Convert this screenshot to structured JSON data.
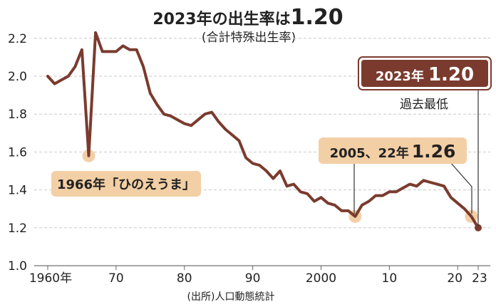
{
  "title": {
    "prefix": "2023年の出生率は",
    "value": "1.20",
    "subtitle": "(合計特殊出生率)"
  },
  "source": "(出所)人口動態統計",
  "colors": {
    "line": "#7a3b2e",
    "label_light": "#f3cfa6",
    "label_dark": "#7a3b2e",
    "grid": "#c9c9c9"
  },
  "annotations": {
    "hinoeuma": {
      "text": "1966年「ひのえうま」"
    },
    "low2005": {
      "years": "2005、22年",
      "value": "1.26"
    },
    "latest": {
      "year": "2023年",
      "value": "1.20",
      "note": "過去最低"
    }
  },
  "chart_data": {
    "type": "line",
    "title": "2023年の出生率は1.20",
    "subtitle": "(合計特殊出生率)",
    "ylim": [
      1.0,
      2.3
    ],
    "xlim": [
      1958,
      2024
    ],
    "grid": true,
    "y_ticks": [
      1.0,
      1.2,
      1.4,
      1.6,
      1.8,
      2.0,
      2.2
    ],
    "y_tick_labels": [
      "1.0",
      "1.2",
      "1.4",
      "1.6",
      "1.8",
      "2.0",
      "2.2"
    ],
    "x_ticks": [
      {
        "x": 1960,
        "label": "1960年"
      },
      {
        "x": 1970,
        "label": "70"
      },
      {
        "x": 1980,
        "label": "80"
      },
      {
        "x": 1990,
        "label": "90"
      },
      {
        "x": 2000,
        "label": "2000"
      },
      {
        "x": 2010,
        "label": "10"
      },
      {
        "x": 2020,
        "label": "20"
      },
      {
        "x": 2023,
        "label": "23"
      }
    ],
    "x": [
      1960,
      1961,
      1962,
      1963,
      1964,
      1965,
      1966,
      1967,
      1968,
      1969,
      1970,
      1971,
      1972,
      1973,
      1974,
      1975,
      1976,
      1977,
      1978,
      1979,
      1980,
      1981,
      1982,
      1983,
      1984,
      1985,
      1986,
      1987,
      1988,
      1989,
      1990,
      1991,
      1992,
      1993,
      1994,
      1995,
      1996,
      1997,
      1998,
      1999,
      2000,
      2001,
      2002,
      2003,
      2004,
      2005,
      2006,
      2007,
      2008,
      2009,
      2010,
      2011,
      2012,
      2013,
      2014,
      2015,
      2016,
      2017,
      2018,
      2019,
      2020,
      2021,
      2022,
      2023
    ],
    "values": [
      2.0,
      1.96,
      1.98,
      2.0,
      2.05,
      2.14,
      1.58,
      2.23,
      2.13,
      2.13,
      2.13,
      2.16,
      2.14,
      2.14,
      2.05,
      1.91,
      1.85,
      1.8,
      1.79,
      1.77,
      1.75,
      1.74,
      1.77,
      1.8,
      1.81,
      1.76,
      1.72,
      1.69,
      1.66,
      1.57,
      1.54,
      1.53,
      1.5,
      1.46,
      1.5,
      1.42,
      1.43,
      1.39,
      1.38,
      1.34,
      1.36,
      1.33,
      1.32,
      1.29,
      1.29,
      1.26,
      1.32,
      1.34,
      1.37,
      1.37,
      1.39,
      1.39,
      1.41,
      1.43,
      1.42,
      1.45,
      1.44,
      1.43,
      1.42,
      1.36,
      1.33,
      1.3,
      1.26,
      1.2
    ],
    "highlights": [
      {
        "x": 1966,
        "y": 1.58
      },
      {
        "x": 2005,
        "y": 1.26
      },
      {
        "x": 2022,
        "y": 1.26
      },
      {
        "x": 2023,
        "y": 1.2
      }
    ]
  }
}
